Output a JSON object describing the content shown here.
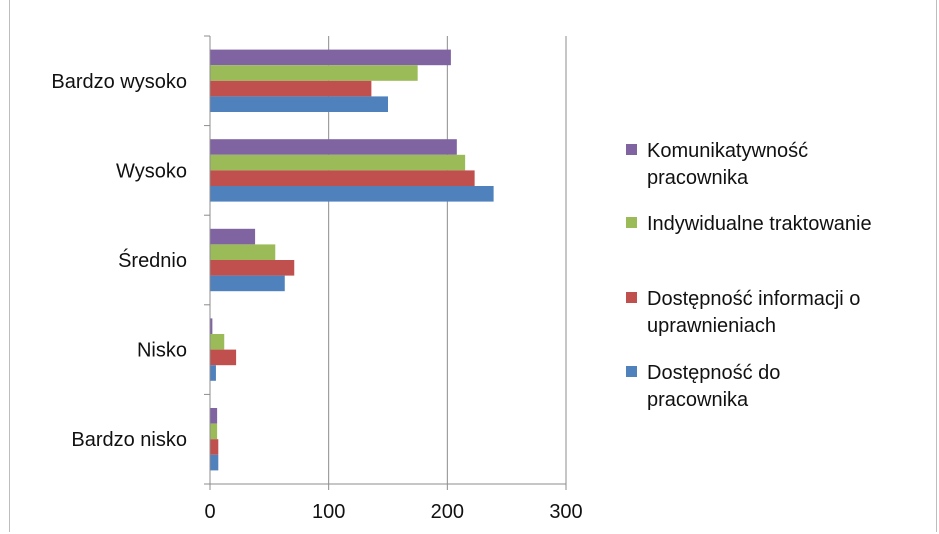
{
  "chart_data": {
    "type": "bar",
    "orientation": "horizontal",
    "categories": [
      "Bardzo wysoko",
      "Wysoko",
      "Średnio",
      "Nisko",
      "Bardzo nisko"
    ],
    "series": [
      {
        "name": "Komunikatywność pracownika",
        "legend_lines": [
          "Komunikatywność",
          "pracownika"
        ],
        "color": "#8064a2",
        "values": [
          203,
          208,
          38,
          2,
          6
        ]
      },
      {
        "name": "Indywidualne traktowanie",
        "legend_lines": [
          "Indywidualne traktowanie"
        ],
        "color": "#9bbb59",
        "values": [
          175,
          215,
          55,
          12,
          6
        ]
      },
      {
        "name": "Dostępność informacji o uprawnieniach",
        "legend_lines": [
          "Dostępność informacji o",
          "uprawnieniach"
        ],
        "color": "#c0504d",
        "values": [
          136,
          223,
          71,
          22,
          7
        ]
      },
      {
        "name": "Dostępność do pracownika",
        "legend_lines": [
          "Dostępność do",
          "pracownika"
        ],
        "color": "#4f81bd",
        "values": [
          150,
          239,
          63,
          5,
          7
        ]
      }
    ],
    "xlim": [
      0,
      300
    ],
    "xticks": [
      "0",
      "100",
      "200",
      "300"
    ],
    "grid": true,
    "legend": "right"
  }
}
